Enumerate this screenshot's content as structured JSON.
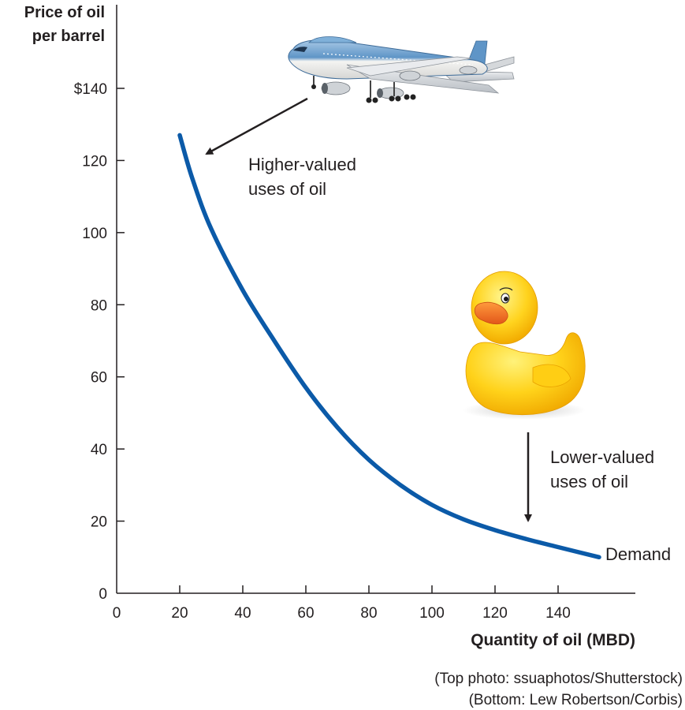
{
  "chart_data": {
    "type": "line",
    "title": "",
    "ylabel": [
      "Price of oil",
      "per barrel"
    ],
    "xlabel": "Quantity of oil (MBD)",
    "xlim": [
      0,
      160
    ],
    "ylim": [
      0,
      140
    ],
    "x_ticks": [
      0,
      20,
      40,
      60,
      80,
      100,
      120,
      140
    ],
    "x_tick_labels": [
      "0",
      "20",
      "40",
      "60",
      "80",
      "100",
      "120",
      "140"
    ],
    "y_ticks": [
      0,
      20,
      40,
      60,
      80,
      100,
      120,
      140
    ],
    "y_tick_labels": [
      "0",
      "20",
      "40",
      "60",
      "80",
      "100",
      "120",
      "$140"
    ],
    "grid": false,
    "series": [
      {
        "name": "Demand",
        "color": "#0b5aa8",
        "x": [
          20,
          24,
          30,
          40,
          50,
          60,
          70,
          80,
          90,
          100,
          110,
          120,
          130,
          140,
          153
        ],
        "y": [
          127,
          115,
          101,
          84,
          70,
          57,
          46,
          37,
          30,
          24.5,
          20.5,
          17.5,
          15,
          12.8,
          10
        ]
      }
    ],
    "annotations": [
      {
        "text": [
          "Higher-valued",
          "uses of oil"
        ],
        "arrow_to": [
          27,
          120
        ]
      },
      {
        "text": [
          "Lower-valued",
          "uses of oil"
        ],
        "arrow_to": [
          130,
          19
        ]
      }
    ],
    "images": [
      {
        "name": "airplane-photo",
        "depicts": "jumbo jet airliner"
      },
      {
        "name": "rubber-duck-photo",
        "depicts": "yellow rubber duck"
      }
    ]
  },
  "credits": [
    "(Top photo: ssuaphotos/Shutterstock)",
    "(Bottom: Lew Robertson/Corbis)"
  ]
}
